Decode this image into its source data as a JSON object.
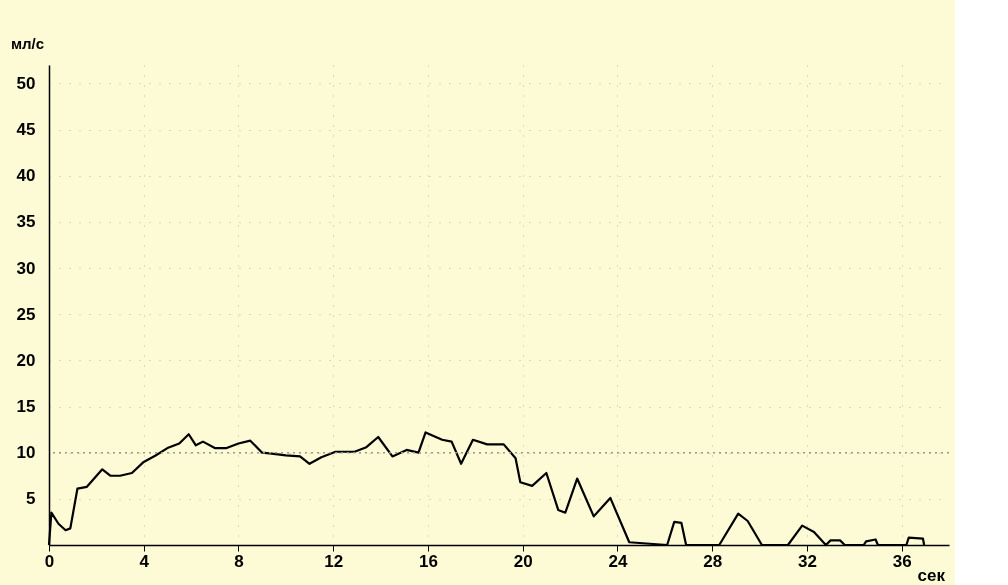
{
  "chart_data": {
    "type": "line",
    "xlabel": "сек",
    "ylabel": "мл/с",
    "x": [
      0,
      0.1,
      0.4,
      0.7,
      0.9,
      1.2,
      1.6,
      2.25,
      2.6,
      3.0,
      3.5,
      4.0,
      4.5,
      5.0,
      5.5,
      5.9,
      6.2,
      6.5,
      7.0,
      7.5,
      8.0,
      8.5,
      9.0,
      9.4,
      10.0,
      10.6,
      11.0,
      11.5,
      12.1,
      12.9,
      13.4,
      13.9,
      14.5,
      15.1,
      15.6,
      15.9,
      16.6,
      17.0,
      17.4,
      17.9,
      18.5,
      19.2,
      19.7,
      19.9,
      20.4,
      21.0,
      21.5,
      21.8,
      22.3,
      23.0,
      23.7,
      24.5,
      26.1,
      26.4,
      26.7,
      26.9,
      28.3,
      29.1,
      29.5,
      30.1,
      31.2,
      31.8,
      32.3,
      32.8,
      33.0,
      33.4,
      33.6,
      34.4,
      34.5,
      34.9,
      35.0,
      36.2,
      36.3,
      36.9,
      36.95
    ],
    "series": [
      {
        "color": "#000000",
        "values": [
          0,
          3.5,
          2.3,
          1.6,
          1.8,
          6.1,
          6.3,
          8.2,
          7.5,
          7.5,
          7.8,
          9.0,
          9.7,
          10.5,
          11.0,
          12.0,
          10.8,
          11.2,
          10.5,
          10.5,
          11.0,
          11.3,
          10.0,
          9.9,
          9.7,
          9.6,
          8.8,
          9.5,
          10.1,
          10.1,
          10.6,
          11.7,
          9.6,
          10.3,
          10.0,
          12.2,
          11.4,
          11.2,
          8.8,
          11.4,
          10.9,
          10.9,
          9.4,
          6.8,
          6.4,
          7.8,
          3.8,
          3.5,
          7.2,
          3.1,
          5.1,
          0.3,
          0,
          2.5,
          2.4,
          0,
          0,
          3.4,
          2.6,
          0,
          0,
          2.1,
          1.4,
          0,
          0.5,
          0.5,
          0,
          0,
          0.4,
          0.6,
          0,
          0,
          0.8,
          0.7,
          0
        ]
      }
    ],
    "xlim": [
      0,
      38
    ],
    "xticks": [
      0,
      4,
      8,
      12,
      16,
      20,
      24,
      28,
      32,
      36
    ],
    "ylim": [
      0,
      52
    ],
    "yticks": [
      5,
      10,
      15,
      20,
      25,
      30,
      35,
      40,
      45,
      50
    ],
    "grid": true,
    "marker": "none",
    "line_style": "solid",
    "ref_lines": [
      {
        "axis": "y",
        "value": 10,
        "label": null,
        "color": "#999988",
        "line_style": "dotted"
      }
    ]
  }
}
